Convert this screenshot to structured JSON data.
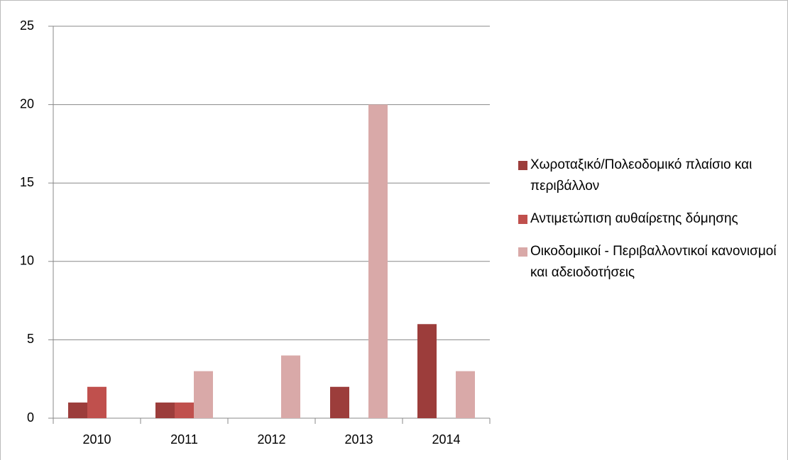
{
  "chart_data": {
    "type": "bar",
    "categories": [
      "2010",
      "2011",
      "2012",
      "2013",
      "2014"
    ],
    "series": [
      {
        "name": "Χωροταξικό/Πολεοδομικό πλαίσιο και περιβάλλον",
        "color": "#9c3d3b",
        "values": [
          1,
          1,
          0,
          2,
          6
        ]
      },
      {
        "name": "Αντιμετώπιση αυθαίρετης δόμησης",
        "color": "#c0504d",
        "values": [
          2,
          1,
          0,
          0,
          0
        ]
      },
      {
        "name": "Οικοδομικοί - Περιβαλλοντικοί κανονισμοί και αδειοδοτήσεις",
        "color": "#d9a9a8",
        "values": [
          0,
          3,
          4,
          20,
          3
        ]
      }
    ],
    "ylim": [
      0,
      25
    ],
    "yticks": [
      0,
      5,
      10,
      15,
      20,
      25
    ],
    "grid": true,
    "legend": "right"
  }
}
